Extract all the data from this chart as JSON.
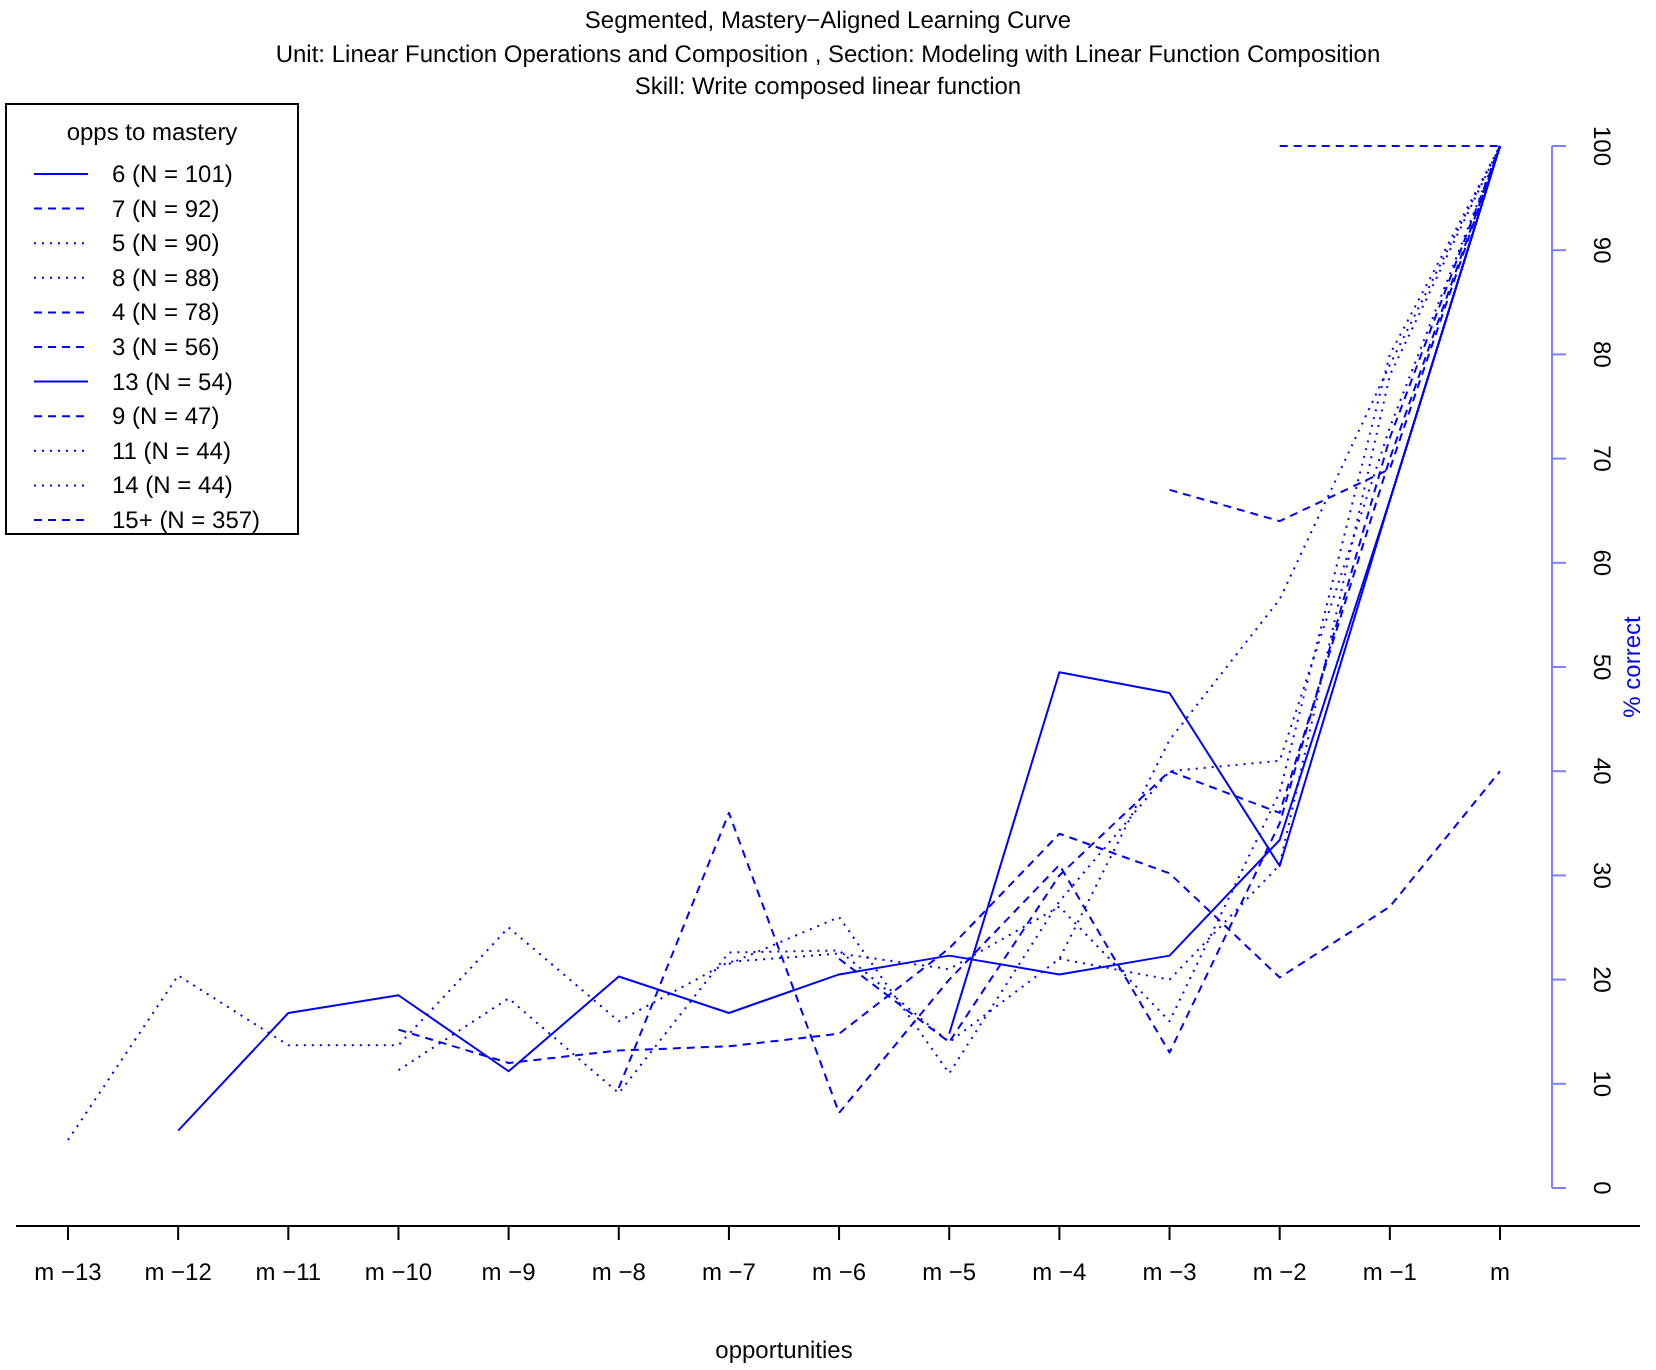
{
  "chart_data": {
    "type": "line",
    "title": "Segmented, Mastery−Aligned Learning Curve",
    "subtitle": "Unit:  Linear Function Operations and Composition , Section:  Modeling with Linear Function Composition\nSkill:  Write composed linear function",
    "xlabel": "opportunities",
    "ylabel": "% correct",
    "legend_title": "opps to mastery",
    "legend": "top left",
    "categories": [
      "m −13",
      "m −12",
      "m −11",
      "m −10",
      "m −9",
      "m −8",
      "m −7",
      "m −6",
      "m −5",
      "m −4",
      "m −3",
      "m −2",
      "m −1",
      "m"
    ],
    "ylim": [
      0,
      100
    ],
    "yticks": [
      0,
      10,
      20,
      30,
      40,
      50,
      60,
      70,
      80,
      90,
      100
    ],
    "series": [
      {
        "name": "6 (N = 101)",
        "color": "#0000ff",
        "line_style": "solid",
        "values": [
          null,
          null,
          null,
          null,
          null,
          null,
          null,
          null,
          14.8,
          49.5,
          47.5,
          30.9,
          66,
          100
        ]
      },
      {
        "name": "7 (N = 92)",
        "color": "#0000ff",
        "line_style": "dashed",
        "values": [
          null,
          null,
          null,
          null,
          null,
          null,
          null,
          22,
          14,
          30,
          40,
          36,
          70,
          100
        ]
      },
      {
        "name": "5 (N = 90)",
        "color": "#0000ff",
        "line_style": "dotted",
        "values": [
          null,
          null,
          null,
          null,
          null,
          null,
          null,
          null,
          null,
          22,
          20,
          31,
          78,
          100
        ]
      },
      {
        "name": "8 (N = 88)",
        "color": "#0000ff",
        "line_style": "dotted",
        "values": [
          null,
          null,
          null,
          null,
          null,
          null,
          21.5,
          26,
          11,
          27.5,
          40,
          41,
          73,
          100
        ]
      },
      {
        "name": "4 (N = 78)",
        "color": "#0000ff",
        "line_style": "dashed",
        "values": [
          null,
          null,
          null,
          null,
          null,
          null,
          null,
          null,
          null,
          null,
          67,
          64,
          69,
          100
        ]
      },
      {
        "name": "3 (N = 56)",
        "color": "#0000ff",
        "line_style": "dashed",
        "values": [
          null,
          null,
          null,
          null,
          null,
          null,
          null,
          null,
          null,
          null,
          null,
          100,
          100,
          100
        ]
      },
      {
        "name": "13 (N = 54)",
        "color": "#0000ff",
        "line_style": "solid",
        "values": [
          null,
          5.5,
          16.8,
          18.5,
          11.2,
          20.3,
          16.8,
          20.5,
          22.3,
          20.5,
          22.3,
          33.4,
          66,
          100
        ]
      },
      {
        "name": "9 (N = 47)",
        "color": "#0000ff",
        "line_style": "dashed",
        "values": [
          null,
          null,
          null,
          null,
          null,
          9.6,
          36,
          7.2,
          20,
          31,
          13,
          35,
          72,
          100
        ]
      },
      {
        "name": "11 (N = 44)",
        "color": "#0000ff",
        "line_style": "dotted",
        "values": [
          null,
          null,
          null,
          11.3,
          18.2,
          9.1,
          22.6,
          22.8,
          14,
          22,
          43,
          56.5,
          79,
          100
        ]
      },
      {
        "name": "14 (N = 44)",
        "color": "#0000ff",
        "line_style": "dotted",
        "values": [
          4.6,
          20.4,
          13.7,
          13.7,
          25,
          16,
          21.7,
          22.5,
          21,
          27,
          16,
          38,
          80,
          100
        ]
      },
      {
        "name": "15+ (N = 357)",
        "color": "#0000ff",
        "line_style": "dashed",
        "values": [
          null,
          null,
          null,
          15.2,
          12,
          13.2,
          13.6,
          14.8,
          23,
          34,
          30.2,
          20.2,
          27,
          40
        ]
      }
    ]
  }
}
